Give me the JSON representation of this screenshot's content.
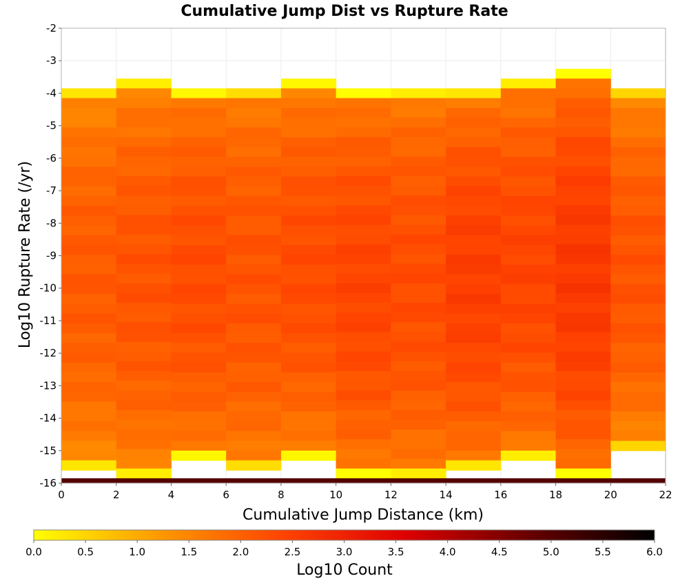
{
  "chart_data": {
    "type": "heatmap",
    "title": "Cumulative Jump Dist vs Rupture Rate",
    "xlabel": "Cumulative Jump Distance (km)",
    "ylabel": "Log10 Rupture Rate (/yr)",
    "xlim": [
      0,
      22
    ],
    "ylim": [
      -16,
      -2
    ],
    "x_ticks": [
      "0",
      "2",
      "4",
      "6",
      "8",
      "10",
      "12",
      "14",
      "16",
      "18",
      "20",
      "22"
    ],
    "y_ticks": [
      "-2",
      "-3",
      "-4",
      "-5",
      "-6",
      "-7",
      "-8",
      "-9",
      "-10",
      "-11",
      "-12",
      "-13",
      "-14",
      "-15",
      "-16"
    ],
    "x_bin_width": 2,
    "y_bin_height": 0.3,
    "grid": true,
    "colorbar": {
      "label": "Log10 Count",
      "range": [
        0,
        6
      ],
      "ticks": [
        "0.0",
        "0.5",
        "1.0",
        "1.5",
        "2.0",
        "2.5",
        "3.0",
        "3.5",
        "4.0",
        "4.5",
        "5.0",
        "5.5",
        "6.0"
      ],
      "colors": [
        "#ffff00",
        "#ff9a00",
        "#ff4400",
        "#dd0000",
        "#660000",
        "#000000"
      ],
      "placement": "bottom"
    },
    "columns": [
      {
        "x_start": 0,
        "top": -3.85,
        "bottom": -15.6,
        "min_value": 1.2,
        "max_value": 2.1,
        "min_edge_value": 0.3
      },
      {
        "x_start": 2,
        "top": -3.55,
        "bottom": -15.85,
        "min_value": 1.3,
        "max_value": 2.2,
        "min_edge_value": 0.2
      },
      {
        "x_start": 4,
        "top": -3.85,
        "bottom": -15.3,
        "min_value": 1.4,
        "max_value": 2.3,
        "min_edge_value": 0.1
      },
      {
        "x_start": 6,
        "top": -3.85,
        "bottom": -15.6,
        "min_value": 1.4,
        "max_value": 2.2,
        "min_edge_value": 0.4
      },
      {
        "x_start": 8,
        "top": -3.55,
        "bottom": -15.3,
        "min_value": 1.3,
        "max_value": 2.3,
        "min_edge_value": 0.1
      },
      {
        "x_start": 10,
        "top": -3.85,
        "bottom": -15.85,
        "min_value": 1.4,
        "max_value": 2.4,
        "min_edge_value": 0.0
      },
      {
        "x_start": 12,
        "top": -3.85,
        "bottom": -15.85,
        "min_value": 1.4,
        "max_value": 2.3,
        "min_edge_value": 0.2
      },
      {
        "x_start": 14,
        "top": -3.85,
        "bottom": -15.6,
        "min_value": 1.4,
        "max_value": 2.5,
        "min_edge_value": 0.3
      },
      {
        "x_start": 16,
        "top": -3.55,
        "bottom": -15.3,
        "min_value": 1.4,
        "max_value": 2.4,
        "min_edge_value": 0.2
      },
      {
        "x_start": 18,
        "top": -3.25,
        "bottom": -15.85,
        "min_value": 1.5,
        "max_value": 2.6,
        "min_edge_value": 0.0
      },
      {
        "x_start": 20,
        "top": -3.85,
        "bottom": -15.0,
        "min_value": 1.2,
        "max_value": 2.2,
        "min_edge_value": 0.5
      }
    ],
    "bottom_band": {
      "y_range": [
        -16,
        -15.85
      ],
      "value": 5.0
    }
  }
}
